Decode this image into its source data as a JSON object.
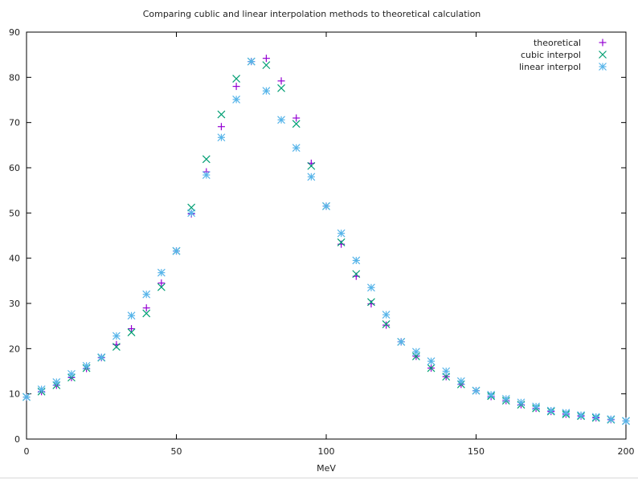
{
  "chart_data": {
    "type": "scatter",
    "title": "Comparing cublic and linear interpolation methods to theoretical calculation",
    "xlabel": "MeV",
    "ylabel": "",
    "xlim": [
      0,
      200
    ],
    "ylim": [
      0,
      90
    ],
    "xticks": [
      "0",
      "50",
      "100",
      "150",
      "200"
    ],
    "yticks": [
      "0",
      "10",
      "20",
      "30",
      "40",
      "50",
      "60",
      "70",
      "80",
      "90"
    ],
    "grid": false,
    "legend_position": "top-right",
    "series": [
      {
        "name": "theoretical",
        "marker": "plus",
        "color": "#9400d3",
        "x": [
          0,
          5,
          10,
          15,
          20,
          25,
          30,
          35,
          40,
          45,
          50,
          55,
          60,
          65,
          70,
          75,
          80,
          85,
          90,
          95,
          100,
          105,
          110,
          115,
          120,
          125,
          130,
          135,
          140,
          145,
          150,
          155,
          160,
          165,
          170,
          175,
          180,
          185,
          190,
          195,
          200
        ],
        "y": [
          9.3,
          10.5,
          11.9,
          13.6,
          15.6,
          18.0,
          20.9,
          24.4,
          29.0,
          34.5,
          41.6,
          49.8,
          59.1,
          69.1,
          78.0,
          83.5,
          84.2,
          79.2,
          71.0,
          61.0,
          51.5,
          43.1,
          36.0,
          29.9,
          25.2,
          21.5,
          18.3,
          15.7,
          13.8,
          12.1,
          10.7,
          9.4,
          8.5,
          7.6,
          6.8,
          6.1,
          5.5,
          5.1,
          4.7,
          4.3,
          4.0
        ]
      },
      {
        "name": "cubic interpol",
        "marker": "cross",
        "color": "#009e73",
        "x": [
          0,
          5,
          10,
          15,
          20,
          25,
          30,
          35,
          40,
          45,
          50,
          55,
          60,
          65,
          70,
          75,
          80,
          85,
          90,
          95,
          100,
          105,
          110,
          115,
          120,
          125,
          130,
          135,
          140,
          145,
          150,
          155,
          160,
          165,
          170,
          175,
          180,
          185,
          190,
          195,
          200
        ],
        "y": [
          9.3,
          10.5,
          11.9,
          13.6,
          15.7,
          18.0,
          20.4,
          23.6,
          27.8,
          33.6,
          41.6,
          51.2,
          61.9,
          71.8,
          79.7,
          83.5,
          82.7,
          77.6,
          69.7,
          60.4,
          51.5,
          43.5,
          36.5,
          30.3,
          25.4,
          21.5,
          18.3,
          15.7,
          13.8,
          12.1,
          10.7,
          9.5,
          8.5,
          7.6,
          6.8,
          6.1,
          5.5,
          5.1,
          4.7,
          4.3,
          4.0
        ]
      },
      {
        "name": "linear interpol",
        "marker": "asterisk",
        "color": "#56b4e9",
        "x": [
          0,
          5,
          10,
          15,
          20,
          25,
          30,
          35,
          40,
          45,
          50,
          55,
          60,
          65,
          70,
          75,
          80,
          85,
          90,
          95,
          100,
          105,
          110,
          115,
          120,
          125,
          130,
          135,
          140,
          145,
          150,
          155,
          160,
          165,
          170,
          175,
          180,
          185,
          190,
          195,
          200
        ],
        "y": [
          9.3,
          11.0,
          12.6,
          14.4,
          16.2,
          18.1,
          22.8,
          27.3,
          32.0,
          36.8,
          41.6,
          50.0,
          58.4,
          66.7,
          75.1,
          83.5,
          77.0,
          70.6,
          64.4,
          58.0,
          51.5,
          45.5,
          39.5,
          33.5,
          27.5,
          21.5,
          19.3,
          17.2,
          15.0,
          12.8,
          10.7,
          9.8,
          8.9,
          8.1,
          7.2,
          6.3,
          5.8,
          5.3,
          4.9,
          4.4,
          4.0
        ]
      }
    ]
  }
}
